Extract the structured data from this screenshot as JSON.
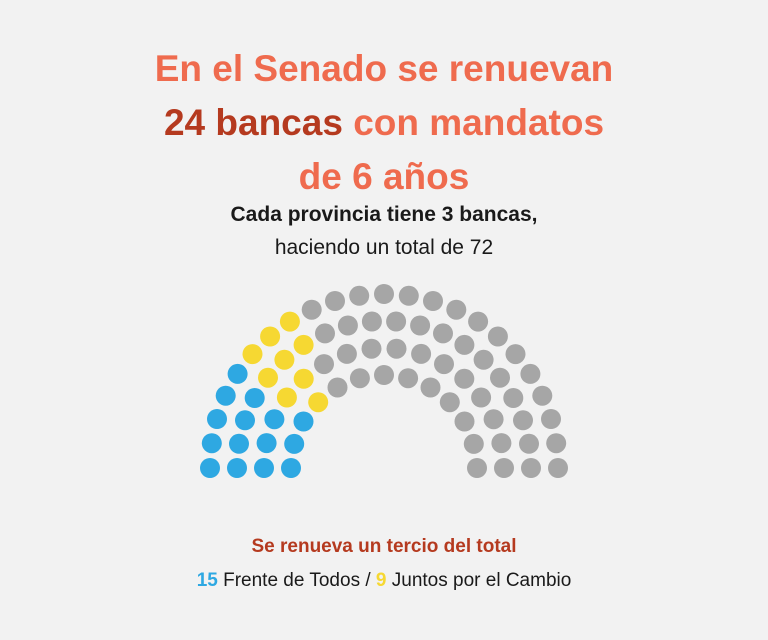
{
  "title": {
    "line1": "En el Senado se renuevan",
    "highlight": "24 bancas",
    "line2_rest": " con mandatos",
    "line3": "de 6 años"
  },
  "subtitle": {
    "bold": "Cada provincia tiene 3 bancas,",
    "regular": "haciendo un total de 72"
  },
  "footer": {
    "headline": "Se renueva un tercio del total",
    "blue_count": "15",
    "blue_label": " Frente de Todos / ",
    "yellow_count": "9",
    "yellow_label": " Juntos por el Cambio"
  },
  "chart_data": {
    "type": "parliament",
    "total_seats": 72,
    "series": [
      {
        "name": "Frente de Todos",
        "value": 15,
        "color": "#2ea8e2"
      },
      {
        "name": "Juntos por el Cambio",
        "value": 9,
        "color": "#f6d832"
      },
      {
        "value": 48,
        "color": "#a6a6a6"
      }
    ]
  }
}
